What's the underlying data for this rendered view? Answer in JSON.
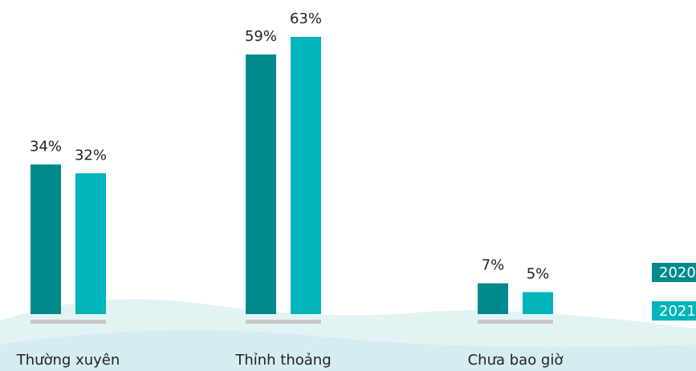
{
  "chart_data": {
    "type": "bar",
    "categories": [
      "Thường xuyên",
      "Thỉnh thoảng",
      "Chưa bao giờ"
    ],
    "series": [
      {
        "name": "2020",
        "color": "#008a8c",
        "values": [
          34,
          59,
          7
        ],
        "value_labels": [
          "34%",
          "59%",
          "7%"
        ]
      },
      {
        "name": "2021",
        "color": "#00b4bb",
        "values": [
          32,
          63,
          5
        ],
        "value_labels": [
          "32%",
          "63%",
          "5%"
        ]
      }
    ]
  }
}
